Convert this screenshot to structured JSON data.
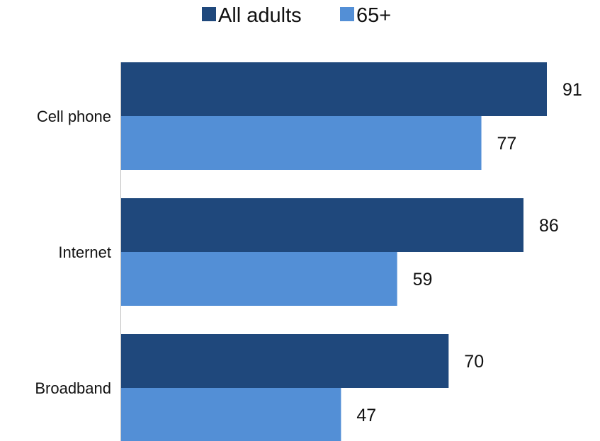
{
  "chart_data": {
    "type": "bar",
    "orientation": "horizontal",
    "title": "",
    "xlabel": "",
    "ylabel": "",
    "categories": [
      "Cell phone",
      "Internet",
      "Broadband"
    ],
    "series": [
      {
        "name": "All adults",
        "values": [
          91,
          86,
          70
        ],
        "color": "#1f487c"
      },
      {
        "name": "65+",
        "values": [
          77,
          59,
          47
        ],
        "color": "#538fd6"
      }
    ],
    "xlim": [
      0,
      91
    ],
    "legend_position": "top",
    "grid": false,
    "data_labels": true
  }
}
